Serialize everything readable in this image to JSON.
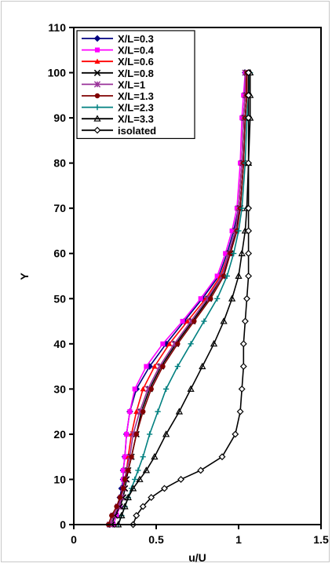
{
  "chart_data": {
    "type": "line",
    "xlabel": "u/U",
    "ylabel": "Y",
    "xlim": [
      0,
      1.5
    ],
    "ylim": [
      0,
      110
    ],
    "xticks": [
      0,
      0.5,
      1,
      1.5
    ],
    "xtick_labels": [
      "0",
      "0.5",
      "1",
      "1.5"
    ],
    "yticks": [
      0,
      10,
      20,
      30,
      40,
      50,
      60,
      70,
      80,
      90,
      100,
      110
    ],
    "ytick_labels": [
      "0",
      "10",
      "20",
      "30",
      "40",
      "50",
      "60",
      "70",
      "80",
      "90",
      "100",
      "110"
    ],
    "grid": false,
    "legend_position": "top-left",
    "series": [
      {
        "name": "X/L=0.3",
        "color": "#000080",
        "marker": "diamond",
        "x": [
          0.22,
          0.24,
          0.27,
          0.28,
          0.29,
          0.3,
          0.3,
          0.31,
          0.32,
          0.34,
          0.38,
          0.46,
          0.56,
          0.67,
          0.78,
          0.88,
          0.93,
          0.97,
          1.0,
          1.02,
          1.03,
          1.04,
          1.04
        ],
        "y": [
          0,
          2,
          4,
          6,
          8,
          10,
          12,
          15,
          20,
          25,
          30,
          35,
          40,
          45,
          50,
          55,
          60,
          65,
          70,
          80,
          90,
          95,
          100
        ]
      },
      {
        "name": "X/L=0.4",
        "color": "#ff00ff",
        "marker": "square",
        "x": [
          0.24,
          0.26,
          0.28,
          0.29,
          0.3,
          0.3,
          0.3,
          0.31,
          0.32,
          0.34,
          0.37,
          0.44,
          0.54,
          0.66,
          0.77,
          0.87,
          0.92,
          0.96,
          0.99,
          1.01,
          1.02,
          1.03,
          1.04
        ],
        "y": [
          0,
          2,
          4,
          6,
          8,
          10,
          12,
          15,
          20,
          25,
          30,
          35,
          40,
          45,
          50,
          55,
          60,
          65,
          70,
          80,
          90,
          95,
          100
        ]
      },
      {
        "name": "X/L=0.6",
        "color": "#ff0000",
        "marker": "triangle",
        "x": [
          0.22,
          0.24,
          0.27,
          0.29,
          0.3,
          0.31,
          0.32,
          0.33,
          0.35,
          0.38,
          0.42,
          0.49,
          0.58,
          0.69,
          0.8,
          0.89,
          0.94,
          0.98,
          1.0,
          1.02,
          1.03,
          1.04,
          1.05
        ],
        "y": [
          0,
          2,
          4,
          6,
          8,
          10,
          12,
          15,
          20,
          25,
          30,
          35,
          40,
          45,
          50,
          55,
          60,
          65,
          70,
          80,
          90,
          95,
          100
        ]
      },
      {
        "name": "X/L=0.8",
        "color": "#000000",
        "marker": "x",
        "x": [
          0.23,
          0.25,
          0.28,
          0.3,
          0.31,
          0.32,
          0.33,
          0.35,
          0.38,
          0.41,
          0.46,
          0.53,
          0.62,
          0.72,
          0.82,
          0.9,
          0.95,
          0.98,
          1.01,
          1.03,
          1.04,
          1.05,
          1.05
        ],
        "y": [
          0,
          2,
          4,
          6,
          8,
          10,
          12,
          15,
          20,
          25,
          30,
          35,
          40,
          45,
          50,
          55,
          60,
          65,
          70,
          80,
          90,
          95,
          100
        ]
      },
      {
        "name": "X/L=1",
        "color": "#993399",
        "marker": "star",
        "x": [
          0.22,
          0.24,
          0.27,
          0.29,
          0.3,
          0.31,
          0.32,
          0.34,
          0.36,
          0.4,
          0.45,
          0.52,
          0.61,
          0.71,
          0.81,
          0.9,
          0.94,
          0.98,
          1.0,
          1.02,
          1.03,
          1.04,
          1.04
        ],
        "y": [
          0,
          2,
          4,
          6,
          8,
          10,
          12,
          15,
          20,
          25,
          30,
          35,
          40,
          45,
          50,
          55,
          60,
          65,
          70,
          80,
          90,
          95,
          100
        ]
      },
      {
        "name": "X/L=1.3",
        "color": "#800000",
        "marker": "circle",
        "x": [
          0.21,
          0.23,
          0.26,
          0.28,
          0.3,
          0.31,
          0.33,
          0.35,
          0.38,
          0.42,
          0.47,
          0.54,
          0.63,
          0.73,
          0.83,
          0.91,
          0.95,
          0.99,
          1.01,
          1.03,
          1.04,
          1.05,
          1.05
        ],
        "y": [
          0,
          2,
          4,
          6,
          8,
          10,
          12,
          15,
          20,
          25,
          30,
          35,
          40,
          45,
          50,
          55,
          60,
          65,
          70,
          80,
          90,
          95,
          100
        ]
      },
      {
        "name": "X/L=2.3",
        "color": "#008080",
        "marker": "plus",
        "x": [
          0.27,
          0.29,
          0.31,
          0.33,
          0.35,
          0.37,
          0.39,
          0.42,
          0.46,
          0.51,
          0.56,
          0.63,
          0.71,
          0.79,
          0.87,
          0.93,
          0.97,
          1.0,
          1.02,
          1.04,
          1.05,
          1.06,
          1.07
        ],
        "y": [
          0,
          2,
          4,
          6,
          8,
          10,
          12,
          15,
          20,
          25,
          30,
          35,
          40,
          45,
          50,
          55,
          60,
          65,
          70,
          80,
          90,
          95,
          100
        ]
      },
      {
        "name": "X/L=3.3",
        "color": "#000000",
        "marker": "triangle-open",
        "x": [
          0.27,
          0.29,
          0.31,
          0.33,
          0.36,
          0.4,
          0.44,
          0.49,
          0.56,
          0.64,
          0.71,
          0.78,
          0.85,
          0.91,
          0.96,
          1.0,
          1.02,
          1.04,
          1.05,
          1.06,
          1.07,
          1.07,
          1.07
        ],
        "y": [
          0,
          2,
          4,
          6,
          8,
          10,
          12,
          15,
          20,
          25,
          30,
          35,
          40,
          45,
          50,
          55,
          60,
          65,
          70,
          80,
          90,
          95,
          100
        ]
      },
      {
        "name": "isolated",
        "color": "#000000",
        "marker": "diamond-open",
        "x": [
          0.36,
          0.38,
          0.42,
          0.47,
          0.55,
          0.65,
          0.77,
          0.9,
          0.98,
          1.01,
          1.02,
          1.03,
          1.03,
          1.04,
          1.05,
          1.06,
          1.06,
          1.06,
          1.06,
          1.06,
          1.06,
          1.06,
          1.06
        ],
        "y": [
          0,
          2,
          4,
          6,
          8,
          10,
          12,
          15,
          20,
          25,
          30,
          35,
          40,
          45,
          50,
          55,
          60,
          65,
          70,
          80,
          90,
          95,
          100
        ]
      }
    ]
  }
}
